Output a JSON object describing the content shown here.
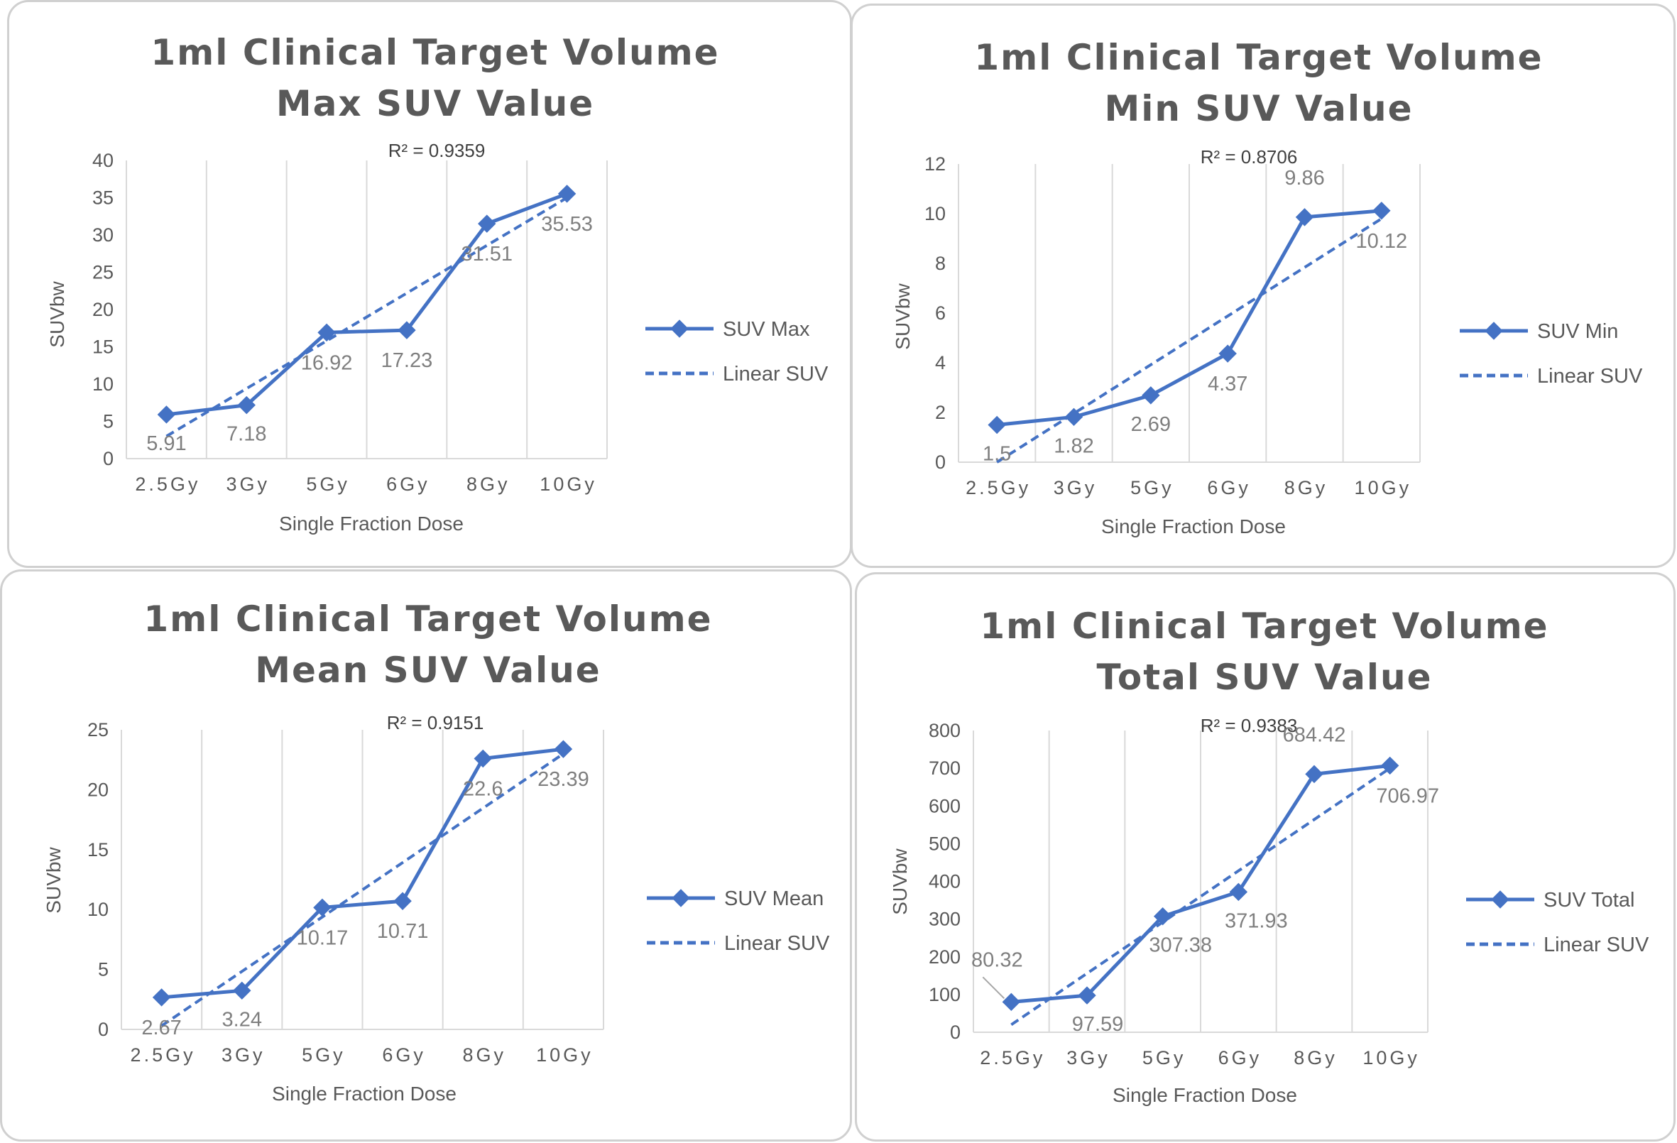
{
  "chart_data": [
    {
      "type": "line",
      "title": [
        "1ml Clinical Target Volume",
        "Max SUV Value"
      ],
      "xlabel": "Single Fraction Dose",
      "ylabel": "SUVbw",
      "categories": [
        "2.5Gy",
        "3Gy",
        "5Gy",
        "6Gy",
        "8Gy",
        "10Gy"
      ],
      "ylim": [
        0,
        40
      ],
      "yticks": [
        0,
        5,
        10,
        15,
        20,
        25,
        30,
        35,
        40
      ],
      "series": [
        {
          "name": "SUV Max",
          "values": [
            5.91,
            7.18,
            16.92,
            17.23,
            31.51,
            35.53
          ]
        }
      ],
      "trendline": {
        "name": "Linear SUV",
        "r2_label": "R² = 0.9359",
        "start": 3.0,
        "end": 35.0
      },
      "data_labels": [
        "5.91",
        "7.18",
        "16.92",
        "17.23",
        "31.51",
        "35.53"
      ],
      "legend_position": "right",
      "grid": "vertical"
    },
    {
      "type": "line",
      "title": [
        "1ml Clinical Target Volume",
        "Min SUV Value"
      ],
      "xlabel": "Single Fraction Dose",
      "ylabel": "SUVbw",
      "categories": [
        "2.5Gy",
        "3Gy",
        "5Gy",
        "6Gy",
        "8Gy",
        "10Gy"
      ],
      "ylim": [
        0,
        12
      ],
      "yticks": [
        0,
        2,
        4,
        6,
        8,
        10,
        12
      ],
      "series": [
        {
          "name": "SUV Min",
          "values": [
            1.5,
            1.82,
            2.69,
            4.37,
            9.86,
            10.12
          ]
        }
      ],
      "trendline": {
        "name": "Linear SUV",
        "r2_label": "R² = 0.8706",
        "start": 0.0,
        "end": 9.8
      },
      "data_labels": [
        "1.5",
        "1.82",
        "2.69",
        "4.37",
        "9.86",
        "10.12"
      ],
      "legend_position": "right",
      "grid": "vertical"
    },
    {
      "type": "line",
      "title": [
        "1ml Clinical Target Volume",
        "Mean SUV Value"
      ],
      "xlabel": "Single Fraction Dose",
      "ylabel": "SUVbw",
      "categories": [
        "2.5Gy",
        "3Gy",
        "5Gy",
        "6Gy",
        "8Gy",
        "10Gy"
      ],
      "ylim": [
        0,
        25
      ],
      "yticks": [
        0,
        5,
        10,
        15,
        20,
        25
      ],
      "series": [
        {
          "name": "SUV Mean",
          "values": [
            2.67,
            3.24,
            10.17,
            10.71,
            22.6,
            23.39
          ]
        }
      ],
      "trendline": {
        "name": "Linear SUV",
        "r2_label": "R² = 0.9151",
        "start": 0.3,
        "end": 23.0
      },
      "data_labels": [
        "2.67",
        "3.24",
        "10.17",
        "10.71",
        "22.6",
        "23.39"
      ],
      "legend_position": "right",
      "grid": "vertical"
    },
    {
      "type": "line",
      "title": [
        "1ml Clinical Target Volume",
        "Total SUV Value"
      ],
      "xlabel": "Single Fraction Dose",
      "ylabel": "SUVbw",
      "categories": [
        "2.5Gy",
        "3Gy",
        "5Gy",
        "6Gy",
        "8Gy",
        "10Gy"
      ],
      "ylim": [
        0,
        800
      ],
      "yticks": [
        0,
        100,
        200,
        300,
        400,
        500,
        600,
        700,
        800
      ],
      "series": [
        {
          "name": "SUV Total",
          "values": [
            80.32,
            97.59,
            307.38,
            371.93,
            684.42,
            706.97
          ]
        }
      ],
      "trendline": {
        "name": "Linear SUV",
        "r2_label": "R² = 0.9383",
        "start": 20,
        "end": 700
      },
      "data_labels": [
        "80.32",
        "97.59",
        "307.38",
        "371.93",
        "684.42",
        "706.97"
      ],
      "legend_position": "right",
      "grid": "vertical"
    }
  ],
  "colors": {
    "series": "#4472c4",
    "text": "#595959",
    "label": "#7f7f7f",
    "grid": "#d9d9d9",
    "border": "#d0d0d0"
  }
}
